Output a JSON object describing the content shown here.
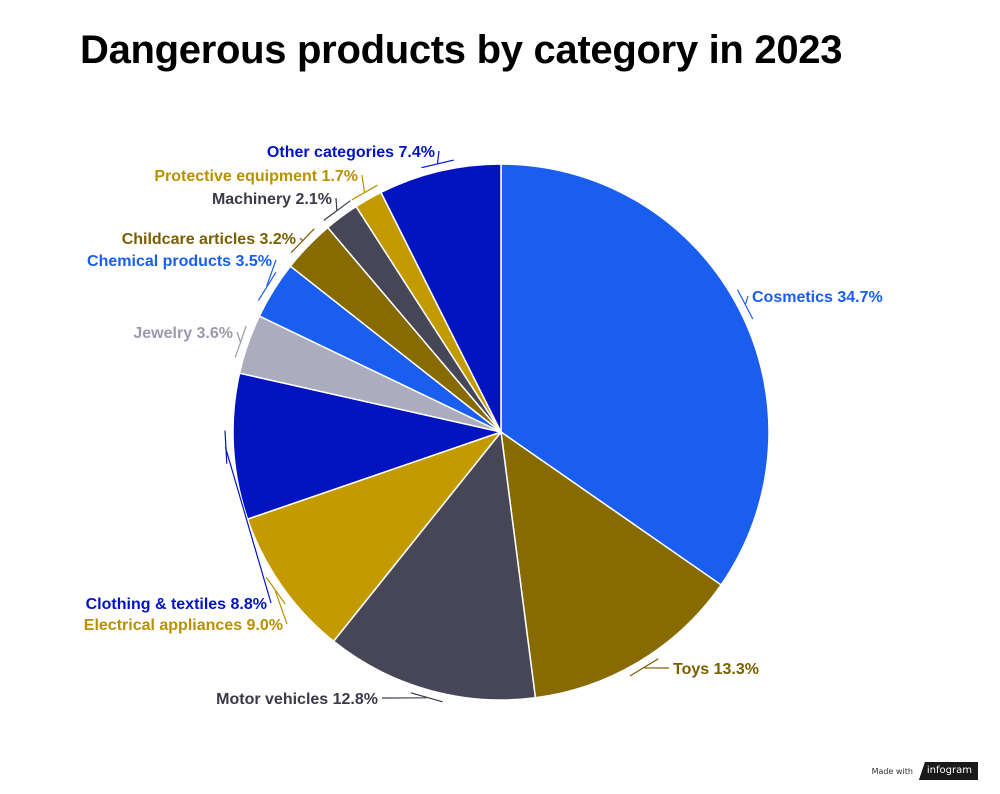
{
  "chart_data": {
    "type": "pie",
    "title": "Dangerous products by category in 2023",
    "slices": [
      {
        "category": "Cosmetics",
        "value": 34.7,
        "label": "Cosmetics 34.7%",
        "color": "#1a5ef0",
        "label_color": "#1a5ef0"
      },
      {
        "category": "Toys",
        "value": 13.3,
        "label": "Toys 13.3%",
        "color": "#876a00",
        "label_color": "#7a5f00"
      },
      {
        "category": "Motor vehicles",
        "value": 12.8,
        "label": "Motor vehicles 12.8%",
        "color": "#464656",
        "label_color": "#3a3a48"
      },
      {
        "category": "Electrical appliances",
        "value": 9.0,
        "label": "Electrical appliances 9.0%",
        "color": "#c39b00",
        "label_color": "#b99000"
      },
      {
        "category": "Clothing & textiles",
        "value": 8.8,
        "label": "Clothing & textiles 8.8%",
        "color": "#0213c0",
        "label_color": "#0213c0"
      },
      {
        "category": "Jewelry",
        "value": 3.6,
        "label": "Jewelry 3.6%",
        "color": "#acacbe",
        "label_color": "#9a9aac"
      },
      {
        "category": "Chemical products",
        "value": 3.5,
        "label": "Chemical products 3.5%",
        "color": "#1a5ef0",
        "label_color": "#1a5ef0"
      },
      {
        "category": "Childcare articles",
        "value": 3.2,
        "label": "Childcare articles 3.2%",
        "color": "#876a00",
        "label_color": "#7a5f00"
      },
      {
        "category": "Machinery",
        "value": 2.1,
        "label": "Machinery 2.1%",
        "color": "#464656",
        "label_color": "#3a3a48"
      },
      {
        "category": "Protective equipment",
        "value": 1.7,
        "label": "Protective equipment 1.7%",
        "color": "#c39b00",
        "label_color": "#b99000"
      },
      {
        "category": "Other categories",
        "value": 7.4,
        "label": "Other categories 7.4%",
        "color": "#0213c0",
        "label_color": "#0213c0"
      }
    ],
    "start_angle": "12 o'clock",
    "direction": "clockwise",
    "legend": "none"
  },
  "footer": {
    "made_with": "Made with",
    "brand": "infogram"
  }
}
